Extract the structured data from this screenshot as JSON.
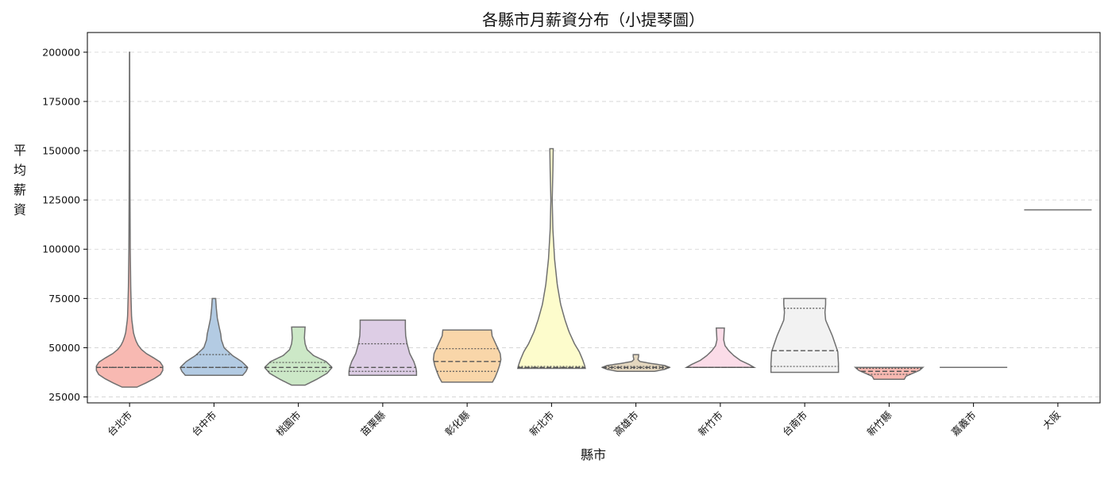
{
  "chart_data": {
    "type": "violin",
    "title": "各縣市月薪資分布（小提琴圖）",
    "xlabel": "縣市",
    "ylabel": "平均薪資",
    "ylim": [
      22000,
      210000
    ],
    "yticks": [
      25000,
      50000,
      75000,
      100000,
      125000,
      150000,
      175000,
      200000
    ],
    "grid": "y-dashed",
    "inner": "quartile",
    "categories": [
      "台北市",
      "台中市",
      "桃園市",
      "苗栗縣",
      "彰化縣",
      "新北市",
      "高雄市",
      "新竹市",
      "台南市",
      "新竹縣",
      "嘉義市",
      "大阪"
    ],
    "colors": [
      "#f8b9b2",
      "#b3cbe3",
      "#cce8c7",
      "#ddcde5",
      "#f9d6a9",
      "#fdfccc",
      "#e4d7bf",
      "#fbdce8",
      "#f2f2f2",
      "#f8b9b2",
      "#b3cbe3",
      "#cce8c7"
    ],
    "series": [
      {
        "category": "台北市",
        "min": 30000,
        "q1": 40000,
        "median": 40000,
        "q3": 40000,
        "max": 200000,
        "profile": [
          [
            30000,
            0.22
          ],
          [
            33000,
            0.6
          ],
          [
            36000,
            0.9
          ],
          [
            39000,
            1.0
          ],
          [
            42000,
            0.97
          ],
          [
            45000,
            0.7
          ],
          [
            48000,
            0.4
          ],
          [
            52000,
            0.22
          ],
          [
            57000,
            0.12
          ],
          [
            65000,
            0.06
          ],
          [
            80000,
            0.035
          ],
          [
            100000,
            0.02
          ],
          [
            130000,
            0.012
          ],
          [
            170000,
            0.006
          ],
          [
            200000,
            0.003
          ]
        ]
      },
      {
        "category": "台中市",
        "min": 36000,
        "q1": 40000,
        "median": 40000,
        "q3": 46500,
        "max": 75000,
        "profile": [
          [
            36000,
            0.85
          ],
          [
            38000,
            0.95
          ],
          [
            40000,
            1.0
          ],
          [
            43000,
            0.82
          ],
          [
            46000,
            0.55
          ],
          [
            50000,
            0.3
          ],
          [
            54000,
            0.22
          ],
          [
            57000,
            0.2
          ],
          [
            60000,
            0.16
          ],
          [
            65000,
            0.1
          ],
          [
            70000,
            0.07
          ],
          [
            75000,
            0.05
          ]
        ]
      },
      {
        "category": "桃園市",
        "min": 31000,
        "q1": 38000,
        "median": 40000,
        "q3": 42500,
        "max": 60500,
        "profile": [
          [
            31000,
            0.2
          ],
          [
            34000,
            0.55
          ],
          [
            37000,
            0.85
          ],
          [
            40000,
            1.0
          ],
          [
            43000,
            0.82
          ],
          [
            46000,
            0.45
          ],
          [
            49000,
            0.26
          ],
          [
            52000,
            0.2
          ],
          [
            55000,
            0.18
          ],
          [
            58000,
            0.19
          ],
          [
            60500,
            0.2
          ]
        ]
      },
      {
        "category": "苗栗縣",
        "min": 36000,
        "q1": 38000,
        "median": 40000,
        "q3": 52000,
        "max": 64000,
        "profile": [
          [
            36000,
            1.0
          ],
          [
            38000,
            1.0
          ],
          [
            40000,
            0.98
          ],
          [
            43000,
            0.92
          ],
          [
            47000,
            0.8
          ],
          [
            52000,
            0.72
          ],
          [
            56000,
            0.68
          ],
          [
            60000,
            0.67
          ],
          [
            64000,
            0.67
          ]
        ]
      },
      {
        "category": "彰化縣",
        "min": 32500,
        "q1": 38000,
        "median": 43000,
        "q3": 49500,
        "max": 59000,
        "profile": [
          [
            32500,
            0.75
          ],
          [
            35000,
            0.83
          ],
          [
            38000,
            0.9
          ],
          [
            41000,
            0.96
          ],
          [
            44000,
            1.0
          ],
          [
            47000,
            0.98
          ],
          [
            50000,
            0.9
          ],
          [
            53000,
            0.82
          ],
          [
            56000,
            0.74
          ],
          [
            59000,
            0.72
          ]
        ]
      },
      {
        "category": "新北市",
        "min": 39500,
        "q1": 39800,
        "median": 40000,
        "q3": 40500,
        "max": 151000,
        "profile": [
          [
            39500,
            1.0
          ],
          [
            41000,
            0.98
          ],
          [
            44000,
            0.92
          ],
          [
            48000,
            0.82
          ],
          [
            52000,
            0.68
          ],
          [
            58000,
            0.52
          ],
          [
            64000,
            0.4
          ],
          [
            72000,
            0.27
          ],
          [
            82000,
            0.17
          ],
          [
            95000,
            0.09
          ],
          [
            110000,
            0.04
          ],
          [
            125000,
            0.02
          ],
          [
            140000,
            0.04
          ],
          [
            151000,
            0.05
          ]
        ]
      },
      {
        "category": "高雄市",
        "min": 38000,
        "q1": 39500,
        "median": 40000,
        "q3": 40500,
        "max": 46500,
        "profile": [
          [
            38000,
            0.55
          ],
          [
            39000,
            0.85
          ],
          [
            40000,
            1.0
          ],
          [
            41000,
            0.85
          ],
          [
            42000,
            0.45
          ],
          [
            43000,
            0.12
          ],
          [
            44000,
            0.06
          ],
          [
            45500,
            0.08
          ],
          [
            46500,
            0.08
          ]
        ]
      },
      {
        "category": "新竹市",
        "min": 40000,
        "q1": 40000,
        "median": 40000,
        "q3": 40000,
        "max": 60000,
        "profile": [
          [
            40000,
            1.0
          ],
          [
            41500,
            0.85
          ],
          [
            43500,
            0.6
          ],
          [
            46000,
            0.4
          ],
          [
            48500,
            0.25
          ],
          [
            51000,
            0.14
          ],
          [
            54000,
            0.1
          ],
          [
            57000,
            0.11
          ],
          [
            60000,
            0.12
          ]
        ]
      },
      {
        "category": "台南市",
        "min": 37500,
        "q1": 40500,
        "median": 48500,
        "q3": 70000,
        "max": 75000,
        "profile": [
          [
            37500,
            1.0
          ],
          [
            42000,
            1.0
          ],
          [
            48000,
            0.98
          ],
          [
            52000,
            0.9
          ],
          [
            56000,
            0.82
          ],
          [
            60000,
            0.72
          ],
          [
            64000,
            0.62
          ],
          [
            68000,
            0.6
          ],
          [
            72000,
            0.62
          ],
          [
            75000,
            0.62
          ]
        ]
      },
      {
        "category": "新竹縣",
        "min": 34000,
        "q1": 36500,
        "median": 38000,
        "q3": 39500,
        "max": 40000,
        "profile": [
          [
            34000,
            0.45
          ],
          [
            35500,
            0.5
          ],
          [
            37000,
            0.7
          ],
          [
            38500,
            0.9
          ],
          [
            40000,
            1.0
          ]
        ]
      },
      {
        "category": "嘉義市",
        "min": 40000,
        "q1": 40000,
        "median": 40000,
        "q3": 40000,
        "max": 40000,
        "profile": []
      },
      {
        "category": "大阪",
        "min": 120000,
        "q1": 120000,
        "median": 120000,
        "q3": 120000,
        "max": 120000,
        "profile": []
      }
    ],
    "line_color": "#707070"
  }
}
